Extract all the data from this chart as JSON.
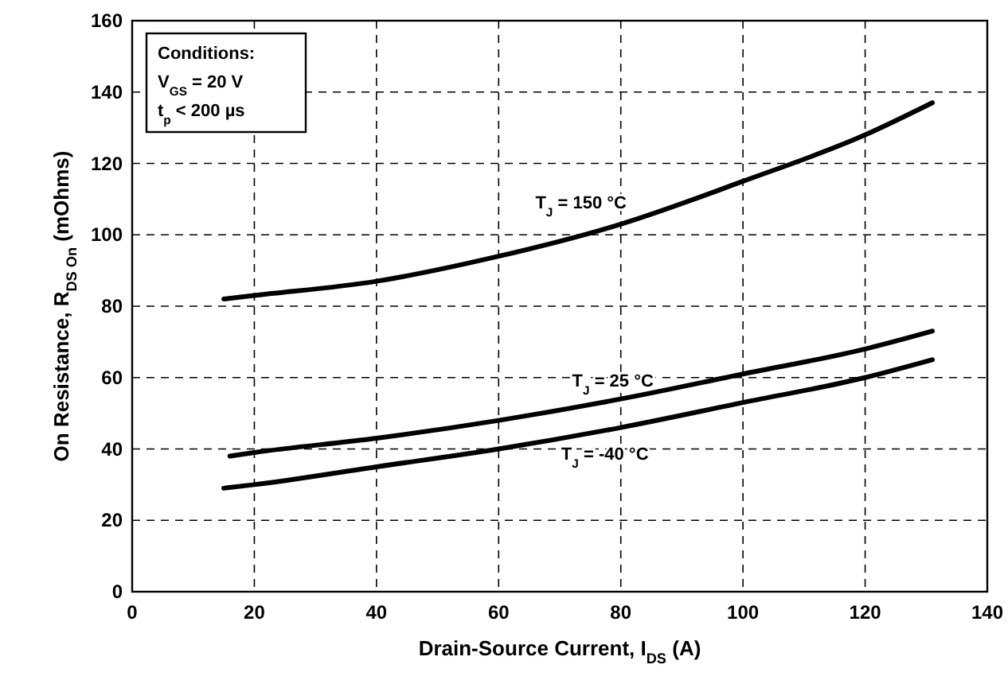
{
  "chart_data": {
    "type": "line",
    "xlabel": "Drain-Source Current, I$_{DS}$ (A)",
    "ylabel": "On Resistance, R$_{DS On}$ (mOhms)",
    "xlim": [
      0,
      140
    ],
    "xticks": [
      0,
      20,
      40,
      60,
      80,
      100,
      120,
      140
    ],
    "ylim": [
      0,
      160
    ],
    "yticks": [
      0,
      20,
      40,
      60,
      80,
      100,
      120,
      140,
      160
    ],
    "grid": true,
    "line_style": "solid",
    "marker": "none",
    "annotations": [
      "Conditions:",
      "V$_{GS}$ = 20 V",
      "t$_{p}$ < 200 µs"
    ],
    "series": [
      {
        "name": "T$_{J}$ = 150 °C",
        "color": "#000000",
        "x": [
          15,
          20,
          40,
          60,
          80,
          100,
          120,
          131
        ],
        "values": [
          82,
          83,
          87,
          94,
          103,
          115,
          128,
          137
        ]
      },
      {
        "name": "T$_{J}$ = 25 °C",
        "color": "#000000",
        "x": [
          16,
          20,
          40,
          60,
          80,
          100,
          120,
          131
        ],
        "values": [
          38,
          39,
          43,
          48,
          54,
          61,
          68,
          73
        ]
      },
      {
        "name": "T$_{J}$ = -40 °C",
        "color": "#000000",
        "x": [
          15,
          20,
          40,
          60,
          80,
          100,
          120,
          131
        ],
        "values": [
          29,
          30,
          35,
          40,
          46,
          53,
          60,
          65
        ]
      }
    ]
  }
}
